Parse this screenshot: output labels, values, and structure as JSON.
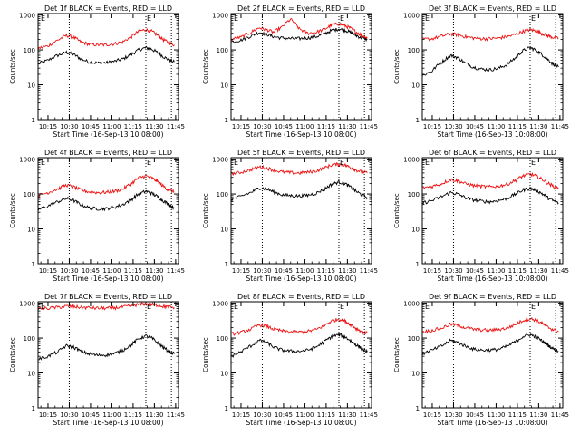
{
  "colors": {
    "events": "#000000",
    "lld": "#ee1111",
    "axes": "#000000"
  },
  "shared": {
    "ylabel": "Counts/sec",
    "xlabel": "Start Time (16-Sep-13 10:08:00)",
    "xtick_labels": [
      "10:15",
      "10:30",
      "10:45",
      "11:00",
      "11:15",
      "11:30",
      "11:45"
    ],
    "ytick_labels": [
      "1",
      "10",
      "100",
      "1000"
    ],
    "marker_label": "E"
  },
  "chart_data": [
    {
      "type": "line",
      "title": "Det 1f BLACK = Events, RED = LLD",
      "yscale": "log",
      "ylim": [
        1,
        1100
      ],
      "xlim": [
        "10:08",
        "11:47"
      ],
      "x": [
        "10:08",
        "10:15",
        "10:22",
        "10:28",
        "10:33",
        "10:38",
        "10:44",
        "10:50",
        "10:56",
        "11:02",
        "11:08",
        "11:14",
        "11:19",
        "11:24",
        "11:28",
        "11:32",
        "11:36",
        "11:40",
        "11:44"
      ],
      "series": [
        {
          "name": "BLACK = Events",
          "color": "#000000",
          "values": [
            40,
            50,
            70,
            85,
            75,
            55,
            45,
            42,
            43,
            47,
            55,
            75,
            100,
            115,
            105,
            85,
            65,
            52,
            45
          ]
        },
        {
          "name": "RED = LLD",
          "color": "#ee1111",
          "values": [
            110,
            130,
            190,
            260,
            230,
            170,
            145,
            140,
            140,
            150,
            170,
            240,
            340,
            380,
            340,
            270,
            200,
            160,
            140
          ]
        }
      ],
      "markers": [
        "10:30",
        "11:24",
        "11:42"
      ]
    },
    {
      "type": "line",
      "title": "Det 2f BLACK = Events, RED = LLD",
      "yscale": "log",
      "ylim": [
        1,
        1100
      ],
      "xlim": [
        "10:08",
        "11:47"
      ],
      "x": [
        "10:08",
        "10:15",
        "10:22",
        "10:28",
        "10:33",
        "10:38",
        "10:44",
        "10:50",
        "10:56",
        "11:02",
        "11:08",
        "11:14",
        "11:19",
        "11:24",
        "11:28",
        "11:32",
        "11:36",
        "11:40",
        "11:44"
      ],
      "series": [
        {
          "name": "BLACK = Events",
          "color": "#000000",
          "values": [
            170,
            190,
            250,
            320,
            280,
            240,
            220,
            210,
            210,
            220,
            240,
            290,
            360,
            400,
            370,
            320,
            260,
            220,
            200
          ]
        },
        {
          "name": "RED = LLD",
          "color": "#ee1111",
          "values": [
            200,
            230,
            320,
            430,
            380,
            320,
            450,
            750,
            400,
            300,
            320,
            390,
            520,
            560,
            500,
            420,
            330,
            260,
            230
          ]
        }
      ],
      "markers": [
        "10:30",
        "11:24",
        "11:42"
      ]
    },
    {
      "type": "line",
      "title": "Det 3f BLACK = Events, RED = LLD",
      "yscale": "log",
      "ylim": [
        1,
        1100
      ],
      "xlim": [
        "10:08",
        "11:47"
      ],
      "x": [
        "10:08",
        "10:15",
        "10:22",
        "10:28",
        "10:33",
        "10:38",
        "10:44",
        "10:50",
        "10:56",
        "11:02",
        "11:08",
        "11:14",
        "11:19",
        "11:24",
        "11:28",
        "11:32",
        "11:36",
        "11:40",
        "11:44"
      ],
      "series": [
        {
          "name": "BLACK = Events",
          "color": "#000000",
          "values": [
            18,
            25,
            45,
            70,
            60,
            42,
            32,
            28,
            27,
            30,
            38,
            60,
            95,
            115,
            100,
            75,
            55,
            40,
            32
          ]
        },
        {
          "name": "RED = LLD",
          "color": "#ee1111",
          "values": [
            200,
            210,
            250,
            290,
            270,
            240,
            220,
            210,
            210,
            220,
            240,
            280,
            340,
            380,
            350,
            300,
            260,
            230,
            210
          ]
        }
      ],
      "markers": [
        "10:30",
        "11:24",
        "11:42"
      ]
    },
    {
      "type": "line",
      "title": "Det 4f BLACK = Events, RED = LLD",
      "yscale": "log",
      "ylim": [
        1,
        1100
      ],
      "xlim": [
        "10:08",
        "11:47"
      ],
      "x": [
        "10:08",
        "10:15",
        "10:22",
        "10:28",
        "10:33",
        "10:38",
        "10:44",
        "10:50",
        "10:56",
        "11:02",
        "11:08",
        "11:14",
        "11:19",
        "11:24",
        "11:28",
        "11:32",
        "11:36",
        "11:40",
        "11:44"
      ],
      "series": [
        {
          "name": "BLACK = Events",
          "color": "#000000",
          "values": [
            35,
            45,
            60,
            75,
            65,
            50,
            40,
            38,
            38,
            42,
            50,
            70,
            100,
            120,
            105,
            85,
            65,
            50,
            40
          ]
        },
        {
          "name": "RED = LLD",
          "color": "#ee1111",
          "values": [
            90,
            110,
            140,
            180,
            160,
            130,
            115,
            110,
            112,
            120,
            140,
            200,
            290,
            330,
            290,
            230,
            170,
            130,
            115
          ]
        }
      ],
      "markers": [
        "10:30",
        "11:24",
        "11:42"
      ]
    },
    {
      "type": "line",
      "title": "Det 5f BLACK = Events, RED = LLD",
      "yscale": "log",
      "ylim": [
        1,
        1100
      ],
      "xlim": [
        "10:08",
        "11:47"
      ],
      "x": [
        "10:08",
        "10:15",
        "10:22",
        "10:28",
        "10:33",
        "10:38",
        "10:44",
        "10:50",
        "10:56",
        "11:02",
        "11:08",
        "11:14",
        "11:19",
        "11:24",
        "11:28",
        "11:32",
        "11:36",
        "11:40",
        "11:44"
      ],
      "series": [
        {
          "name": "BLACK = Events",
          "color": "#000000",
          "values": [
            70,
            85,
            110,
            150,
            140,
            115,
            95,
            90,
            88,
            92,
            105,
            140,
            190,
            220,
            200,
            160,
            120,
            95,
            80
          ]
        },
        {
          "name": "RED = LLD",
          "color": "#ee1111",
          "values": [
            380,
            420,
            500,
            600,
            560,
            480,
            430,
            410,
            400,
            420,
            460,
            560,
            680,
            720,
            680,
            580,
            490,
            430,
            400
          ]
        }
      ],
      "markers": [
        "10:30",
        "11:24",
        "11:42"
      ]
    },
    {
      "type": "line",
      "title": "Det 6f BLACK = Events, RED = LLD",
      "yscale": "log",
      "ylim": [
        1,
        1100
      ],
      "xlim": [
        "10:08",
        "11:47"
      ],
      "x": [
        "10:08",
        "10:15",
        "10:22",
        "10:28",
        "10:33",
        "10:38",
        "10:44",
        "10:50",
        "10:56",
        "11:02",
        "11:08",
        "11:14",
        "11:19",
        "11:24",
        "11:28",
        "11:32",
        "11:36",
        "11:40",
        "11:44"
      ],
      "series": [
        {
          "name": "BLACK = Events",
          "color": "#000000",
          "values": [
            55,
            65,
            85,
            110,
            100,
            80,
            68,
            62,
            60,
            65,
            75,
            100,
            130,
            145,
            130,
            105,
            80,
            65,
            55
          ]
        },
        {
          "name": "RED = LLD",
          "color": "#ee1111",
          "values": [
            150,
            165,
            200,
            260,
            240,
            200,
            175,
            165,
            160,
            170,
            190,
            250,
            330,
            370,
            330,
            270,
            210,
            170,
            150
          ]
        }
      ],
      "markers": [
        "10:30",
        "11:24",
        "11:42"
      ]
    },
    {
      "type": "line",
      "title": "Det 7f BLACK = Events, RED = LLD",
      "yscale": "log",
      "ylim": [
        1,
        1100
      ],
      "xlim": [
        "10:08",
        "11:47"
      ],
      "x": [
        "10:08",
        "10:15",
        "10:22",
        "10:28",
        "10:33",
        "10:38",
        "10:44",
        "10:50",
        "10:56",
        "11:02",
        "11:08",
        "11:14",
        "11:19",
        "11:24",
        "11:28",
        "11:32",
        "11:36",
        "11:40",
        "11:44"
      ],
      "series": [
        {
          "name": "BLACK = Events",
          "color": "#000000",
          "values": [
            25,
            30,
            40,
            60,
            55,
            42,
            35,
            32,
            33,
            36,
            45,
            65,
            95,
            115,
            100,
            75,
            55,
            42,
            35
          ]
        },
        {
          "name": "RED = LLD",
          "color": "#ee1111",
          "values": [
            700,
            720,
            760,
            820,
            800,
            760,
            740,
            720,
            720,
            740,
            780,
            850,
            920,
            960,
            930,
            880,
            820,
            780,
            750
          ]
        }
      ],
      "markers": [
        "10:30",
        "11:24",
        "11:42"
      ]
    },
    {
      "type": "line",
      "title": "Det 8f BLACK = Events, RED = LLD",
      "yscale": "log",
      "ylim": [
        1,
        1100
      ],
      "xlim": [
        "10:08",
        "11:47"
      ],
      "x": [
        "10:08",
        "10:15",
        "10:22",
        "10:28",
        "10:33",
        "10:38",
        "10:44",
        "10:50",
        "10:56",
        "11:02",
        "11:08",
        "11:14",
        "11:19",
        "11:24",
        "11:28",
        "11:32",
        "11:36",
        "11:40",
        "11:44"
      ],
      "series": [
        {
          "name": "BLACK = Events",
          "color": "#000000",
          "values": [
            30,
            40,
            60,
            85,
            75,
            55,
            45,
            42,
            42,
            45,
            55,
            80,
            110,
            125,
            110,
            85,
            65,
            50,
            40
          ]
        },
        {
          "name": "RED = LLD",
          "color": "#ee1111",
          "values": [
            130,
            145,
            180,
            240,
            220,
            180,
            160,
            150,
            148,
            155,
            175,
            230,
            310,
            350,
            310,
            250,
            190,
            155,
            135
          ]
        }
      ],
      "markers": [
        "10:30",
        "11:24",
        "11:42"
      ]
    },
    {
      "type": "line",
      "title": "Det 9f BLACK = Events, RED = LLD",
      "yscale": "log",
      "ylim": [
        1,
        1100
      ],
      "xlim": [
        "10:08",
        "11:47"
      ],
      "x": [
        "10:08",
        "10:15",
        "10:22",
        "10:28",
        "10:33",
        "10:38",
        "10:44",
        "10:50",
        "10:56",
        "11:02",
        "11:08",
        "11:14",
        "11:19",
        "11:24",
        "11:28",
        "11:32",
        "11:36",
        "11:40",
        "11:44"
      ],
      "series": [
        {
          "name": "BLACK = Events",
          "color": "#000000",
          "values": [
            35,
            45,
            60,
            85,
            75,
            60,
            48,
            45,
            45,
            48,
            58,
            80,
            110,
            125,
            110,
            85,
            65,
            50,
            42
          ]
        },
        {
          "name": "RED = LLD",
          "color": "#ee1111",
          "values": [
            150,
            165,
            195,
            250,
            235,
            200,
            178,
            170,
            168,
            175,
            195,
            250,
            320,
            360,
            325,
            270,
            210,
            175,
            155
          ]
        }
      ],
      "markers": [
        "10:30",
        "11:24",
        "11:42"
      ]
    }
  ]
}
